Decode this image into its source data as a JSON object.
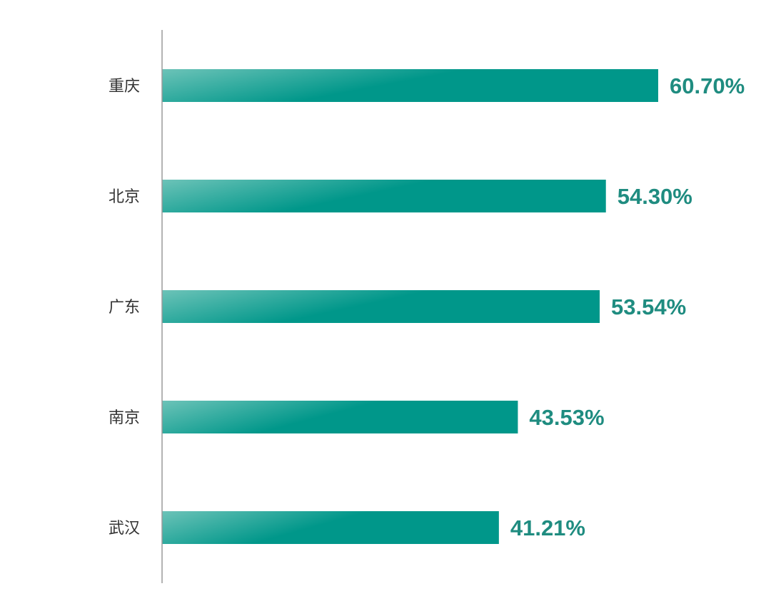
{
  "chart_data": {
    "type": "bar",
    "orientation": "horizontal",
    "categories": [
      "重庆",
      "北京",
      "广东",
      "南京",
      "武汉"
    ],
    "values": [
      60.7,
      54.3,
      53.54,
      43.53,
      41.21
    ],
    "value_labels": [
      "60.70%",
      "54.30%",
      "53.54%",
      "43.53%",
      "41.21%"
    ],
    "title": "",
    "xlabel": "",
    "ylabel": "",
    "xlim": [
      0,
      60.7
    ],
    "grid": false,
    "legend": "none",
    "bar_color_start": "#6cc3b8",
    "bar_color_end": "#00978a",
    "label_color": "#1f8c80",
    "axis_color": "#9a9a9a"
  }
}
